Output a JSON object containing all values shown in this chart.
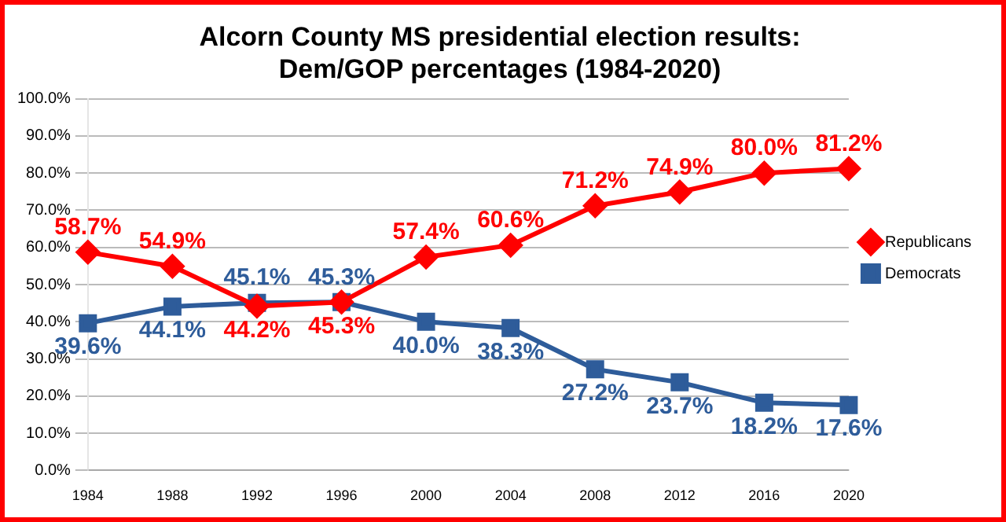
{
  "chart_data": {
    "type": "line",
    "title": "Alcorn County MS presidential election results:",
    "subtitle": "Dem/GOP percentages (1984-2020)",
    "categories": [
      "1984",
      "1988",
      "1992",
      "1996",
      "2000",
      "2004",
      "2008",
      "2012",
      "2016",
      "2020"
    ],
    "series": [
      {
        "name": "Republicans",
        "color": "#ff0000",
        "marker": "diamond",
        "values": [
          58.7,
          54.9,
          44.2,
          45.3,
          57.4,
          60.6,
          71.2,
          74.9,
          80.0,
          81.2
        ],
        "value_labels": [
          "58.7%",
          "54.9%",
          "44.2%",
          "45.3%",
          "57.4%",
          "60.6%",
          "71.2%",
          "74.9%",
          "80.0%",
          "81.2%"
        ]
      },
      {
        "name": "Democrats",
        "color": "#2e5c9a",
        "marker": "square",
        "values": [
          39.6,
          44.1,
          45.1,
          45.3,
          40.0,
          38.3,
          27.2,
          23.7,
          18.2,
          17.6
        ],
        "value_labels": [
          "39.6%",
          "44.1%",
          "45.1%",
          "45.3%",
          "40.0%",
          "38.3%",
          "27.2%",
          "23.7%",
          "18.2%",
          "17.6%"
        ]
      }
    ],
    "ylim": [
      0,
      100
    ],
    "yticks": [
      {
        "value": 0,
        "label": "0.0%"
      },
      {
        "value": 10,
        "label": "10.0%"
      },
      {
        "value": 20,
        "label": "20.0%"
      },
      {
        "value": 30,
        "label": "30.0%"
      },
      {
        "value": 40,
        "label": "40.0%"
      },
      {
        "value": 50,
        "label": "50.0%"
      },
      {
        "value": 60,
        "label": "60.0%"
      },
      {
        "value": 70,
        "label": "70.0%"
      },
      {
        "value": 80,
        "label": "80.0%"
      },
      {
        "value": 90,
        "label": "90.0%"
      },
      {
        "value": 100,
        "label": "100.0%"
      }
    ],
    "grid": "y",
    "legend": "right",
    "line_style": "solid"
  }
}
